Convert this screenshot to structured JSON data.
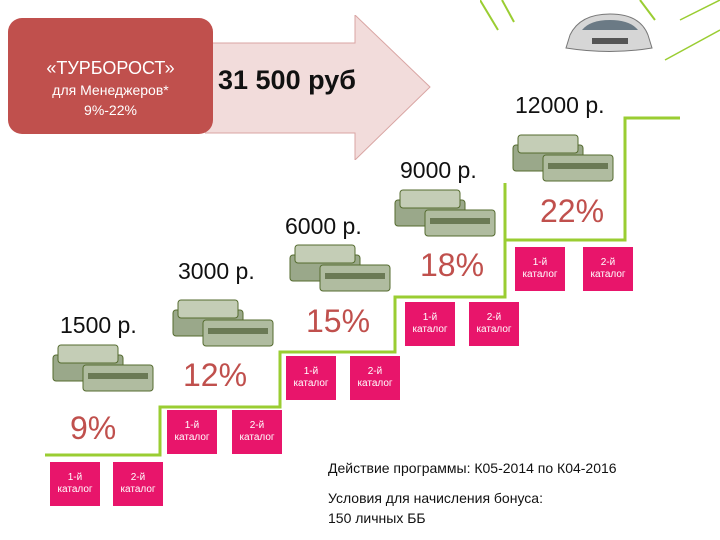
{
  "program": {
    "name": "«ТУРБОРОСТ»",
    "audience": "для Менеджеров*",
    "range": "9%-22%"
  },
  "max_bonus": "31 500 руб",
  "steps": [
    {
      "amount": "1500 р.",
      "percent": "9%",
      "catalog1": "1-й\nкаталог",
      "catalog2": "2-й\nкаталог"
    },
    {
      "amount": "3000 р.",
      "percent": "12%",
      "catalog1": "1-й\nкаталог",
      "catalog2": "2-й\nкаталог"
    },
    {
      "amount": "6000 р.",
      "percent": "15%",
      "catalog1": "1-й\nкаталог",
      "catalog2": "2-й\nкаталог"
    },
    {
      "amount": "9000 р.",
      "percent": "18%",
      "catalog1": "1-й\nкаталог",
      "catalog2": "2-й\nкаталог"
    },
    {
      "amount": "12000 р.",
      "percent": "22%",
      "catalog1": "1-й\nкаталог",
      "catalog2": "2-й\nкаталог"
    }
  ],
  "footer": {
    "period": "Действие программы: К05-2014 по К04-2016",
    "conditions_title": "Условия для начисления бонуса:",
    "conditions_value": "150 личных ББ"
  },
  "colors": {
    "accent_red": "#c0504d",
    "catalog_pink": "#e8156b",
    "stair_green": "#9acd32",
    "arrow_fill": "#f2dcdb"
  }
}
